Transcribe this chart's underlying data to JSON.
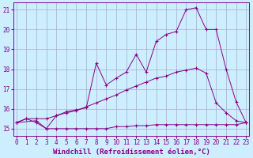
{
  "background_color": "#cceeff",
  "grid_color": "#aaaacc",
  "line_color": "#880088",
  "xlabel": "Windchill (Refroidissement éolien,°C)",
  "xlabel_fontsize": 6.5,
  "tick_fontsize": 5.5,
  "yticks": [
    15,
    16,
    17,
    18,
    19,
    20,
    21
  ],
  "xticks": [
    0,
    1,
    2,
    3,
    4,
    5,
    6,
    7,
    8,
    9,
    10,
    11,
    12,
    13,
    14,
    15,
    16,
    17,
    18,
    19,
    20,
    21,
    22,
    23
  ],
  "xlim": [
    -0.3,
    23.3
  ],
  "ylim": [
    14.65,
    21.35
  ],
  "series": [
    {
      "x": [
        0,
        1,
        2,
        3,
        4,
        5,
        6,
        7,
        8,
        9,
        10,
        11,
        12,
        13,
        14,
        15,
        16,
        17,
        18,
        19,
        20,
        21,
        22,
        23
      ],
      "y": [
        15.3,
        15.5,
        15.3,
        15.0,
        15.0,
        15.0,
        15.0,
        15.0,
        15.0,
        15.0,
        15.1,
        15.1,
        15.15,
        15.15,
        15.2,
        15.2,
        15.2,
        15.2,
        15.2,
        15.2,
        15.2,
        15.2,
        15.2,
        15.3
      ],
      "marker": true
    },
    {
      "x": [
        0,
        1,
        2,
        3,
        4,
        5,
        6,
        7,
        8,
        9,
        10,
        11,
        12,
        13,
        14,
        15,
        16,
        17,
        18,
        19,
        20,
        21,
        22,
        23
      ],
      "y": [
        15.3,
        15.5,
        15.5,
        15.5,
        15.65,
        15.8,
        15.9,
        16.1,
        16.3,
        16.5,
        16.7,
        16.95,
        17.15,
        17.35,
        17.55,
        17.65,
        17.85,
        17.95,
        18.05,
        17.8,
        16.3,
        15.8,
        15.4,
        15.3
      ],
      "marker": true
    },
    {
      "x": [
        0,
        2,
        3,
        4,
        5,
        6,
        7,
        8,
        9,
        10,
        11,
        12,
        13,
        14,
        15,
        16,
        17,
        18,
        19,
        20,
        21,
        22,
        23
      ],
      "y": [
        15.3,
        15.4,
        15.0,
        15.65,
        15.85,
        15.95,
        16.05,
        18.3,
        17.2,
        17.55,
        17.85,
        18.75,
        17.85,
        19.4,
        19.75,
        19.9,
        21.0,
        21.1,
        20.0,
        20.0,
        18.0,
        16.35,
        15.3
      ],
      "marker": true
    }
  ]
}
